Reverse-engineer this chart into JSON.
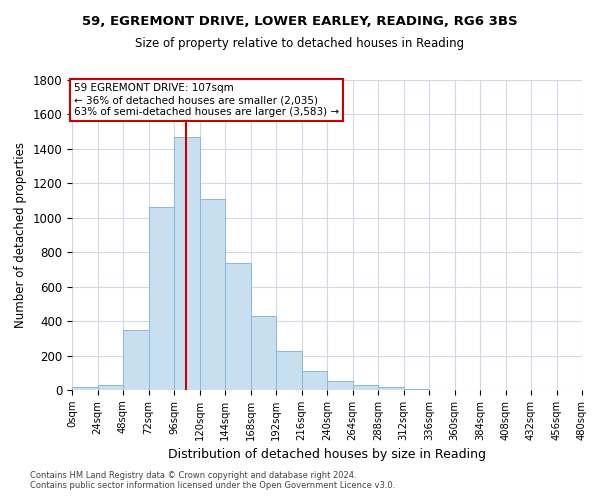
{
  "title1": "59, EGREMONT DRIVE, LOWER EARLEY, READING, RG6 3BS",
  "title2": "Size of property relative to detached houses in Reading",
  "xlabel": "Distribution of detached houses by size in Reading",
  "ylabel": "Number of detached properties",
  "bar_color": "#c8dff0",
  "bar_edge_color": "#8ab8d8",
  "bin_edges": [
    0,
    24,
    48,
    72,
    96,
    120,
    144,
    168,
    192,
    216,
    240,
    264,
    288,
    312,
    336,
    360,
    384,
    408,
    432,
    456,
    480
  ],
  "counts": [
    15,
    30,
    350,
    1060,
    1470,
    1110,
    740,
    430,
    225,
    110,
    55,
    30,
    15,
    5,
    0,
    0,
    0,
    0,
    0,
    0
  ],
  "property_size": 107,
  "vline_color": "#cc0000",
  "annotation_line1": "59 EGREMONT DRIVE: 107sqm",
  "annotation_line2": "← 36% of detached houses are smaller (2,035)",
  "annotation_line3": "63% of semi-detached houses are larger (3,583) →",
  "footnote1": "Contains HM Land Registry data © Crown copyright and database right 2024.",
  "footnote2": "Contains public sector information licensed under the Open Government Licence v3.0.",
  "ylim": [
    0,
    1800
  ],
  "yticks": [
    0,
    200,
    400,
    600,
    800,
    1000,
    1200,
    1400,
    1600,
    1800
  ],
  "xtick_labels": [
    "0sqm",
    "24sqm",
    "48sqm",
    "72sqm",
    "96sqm",
    "120sqm",
    "144sqm",
    "168sqm",
    "192sqm",
    "216sqm",
    "240sqm",
    "264sqm",
    "288sqm",
    "312sqm",
    "336sqm",
    "360sqm",
    "384sqm",
    "408sqm",
    "432sqm",
    "456sqm",
    "480sqm"
  ],
  "background_color": "#ffffff",
  "grid_color": "#d0d8e8"
}
